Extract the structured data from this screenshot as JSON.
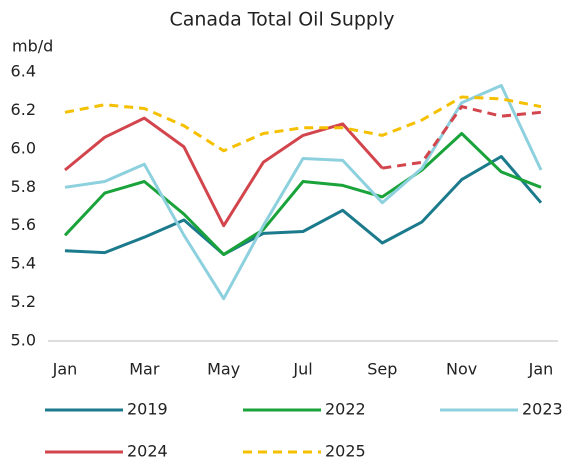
{
  "chart_data": {
    "type": "line",
    "title": "Canada Total Oil Supply",
    "y_label": "mb/d",
    "categories": [
      "Jan",
      null,
      "Mar",
      null,
      "May",
      null,
      "Jul",
      null,
      "Sep",
      null,
      "Nov",
      null,
      "Jan"
    ],
    "ylim": [
      5.0,
      6.4
    ],
    "yticks": [
      {
        "value": 5.0,
        "label": "5.0"
      },
      5.2,
      5.4,
      5.6,
      5.8,
      {
        "value": 6.0,
        "label": "6.0"
      },
      6.2,
      6.4
    ],
    "grid": false,
    "series": [
      {
        "name": "2019",
        "color": "#1b7a8c",
        "values": [
          5.47,
          5.46,
          5.54,
          5.63,
          5.45,
          5.56,
          5.57,
          5.68,
          5.51,
          5.62,
          5.84,
          5.96,
          5.72
        ]
      },
      {
        "name": "2022",
        "color": "#1aa33a",
        "values": [
          5.55,
          5.77,
          5.83,
          5.66,
          5.45,
          5.58,
          5.83,
          5.81,
          5.75,
          5.89,
          6.08,
          5.88,
          5.8
        ]
      },
      {
        "name": "2023",
        "color": "#8dd0de",
        "values": [
          5.8,
          5.83,
          5.92,
          5.55,
          5.22,
          5.6,
          5.95,
          5.94,
          5.72,
          5.9,
          6.24,
          6.33,
          5.89
        ]
      },
      {
        "name": "2024",
        "color": "#d2454c",
        "dash_start": 8,
        "values": [
          5.89,
          6.06,
          6.16,
          6.01,
          5.6,
          5.93,
          6.07,
          6.13,
          5.9,
          5.93,
          6.22,
          6.17,
          6.19
        ]
      },
      {
        "name": "2025",
        "color": "#f5c000",
        "dashed": true,
        "values": [
          6.19,
          6.23,
          6.21,
          6.12,
          5.99,
          6.08,
          6.11,
          6.11,
          6.07,
          6.15,
          6.27,
          6.26,
          6.22
        ]
      }
    ]
  }
}
